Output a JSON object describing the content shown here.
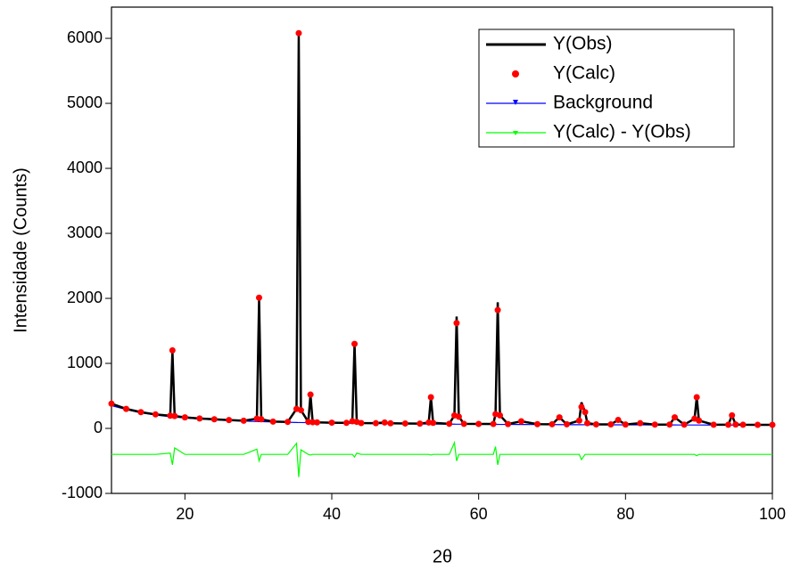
{
  "chart_data": {
    "type": "line",
    "xlabel": "2θ",
    "ylabel": "Intensidade (Counts)",
    "xlim": [
      10,
      100
    ],
    "ylim": [
      -1000,
      6480
    ],
    "xticks": [
      20,
      40,
      60,
      80,
      100
    ],
    "yticks": [
      -1000,
      0,
      1000,
      2000,
      3000,
      4000,
      5000,
      6000
    ],
    "legend": "upper-right",
    "x": [
      10,
      12,
      14,
      16,
      18,
      18.3,
      18.6,
      20,
      22,
      24,
      26,
      28,
      29.8,
      30.1,
      30.4,
      32,
      34,
      35.2,
      35.5,
      35.8,
      36.8,
      37.1,
      37.4,
      38,
      40,
      42,
      42.8,
      43.1,
      43.4,
      44,
      46,
      47.2,
      48,
      50,
      52,
      53.2,
      53.5,
      53.8,
      56,
      56.7,
      57,
      57.3,
      58,
      60,
      62,
      62.3,
      62.6,
      62.9,
      64,
      65.8,
      68,
      70,
      71,
      72,
      73.7,
      74,
      74.5,
      74.8,
      76,
      78,
      79,
      80,
      82,
      84,
      86,
      86.7,
      88,
      89.4,
      89.7,
      90,
      92,
      94,
      94.5,
      95,
      96,
      98,
      100
    ],
    "series": [
      {
        "name": "Y(Obs)",
        "color": "#000000",
        "style": "line",
        "values": [
          380,
          300,
          250,
          215,
          195,
          1190,
          190,
          170,
          152,
          140,
          128,
          118,
          150,
          1980,
          140,
          105,
          100,
          300,
          6050,
          280,
          100,
          520,
          95,
          92,
          88,
          85,
          110,
          1300,
          100,
          82,
          80,
          90,
          78,
          76,
          74,
          90,
          480,
          85,
          71,
          200,
          1720,
          180,
          70,
          69,
          68,
          220,
          1940,
          200,
          67,
          110,
          65,
          64,
          170,
          63,
          120,
          400,
          250,
          80,
          62,
          61,
          130,
          60,
          80,
          59,
          59,
          170,
          58,
          150,
          480,
          120,
          57,
          57,
          200,
          60,
          56,
          55,
          55
        ]
      },
      {
        "name": "Y(Calc)",
        "color": "#ff0000",
        "style": "dots",
        "values": [
          380,
          300,
          250,
          215,
          195,
          1200,
          190,
          170,
          152,
          140,
          128,
          118,
          150,
          2010,
          140,
          105,
          100,
          300,
          6080,
          280,
          100,
          520,
          95,
          92,
          88,
          85,
          110,
          1300,
          100,
          82,
          80,
          90,
          78,
          76,
          74,
          90,
          480,
          85,
          71,
          200,
          1620,
          180,
          70,
          69,
          68,
          220,
          1820,
          200,
          67,
          110,
          65,
          64,
          170,
          63,
          120,
          330,
          250,
          80,
          62,
          61,
          130,
          60,
          80,
          59,
          59,
          170,
          58,
          150,
          480,
          120,
          57,
          57,
          200,
          60,
          56,
          55,
          55
        ]
      },
      {
        "name": "Background",
        "color": "#0000ff",
        "style": "line",
        "values": [
          350,
          290,
          240,
          205,
          180,
          177,
          174,
          160,
          145,
          132,
          122,
          113,
          106,
          105,
          104,
          99,
          94,
          91,
          90,
          90,
          88,
          87,
          87,
          86,
          82,
          79,
          78,
          78,
          77,
          76,
          74,
          73,
          72,
          70,
          68,
          67,
          67,
          67,
          65,
          65,
          64,
          64,
          64,
          63,
          62,
          62,
          62,
          61,
          61,
          60,
          59,
          58,
          58,
          57,
          57,
          57,
          56,
          56,
          56,
          55,
          55,
          54,
          54,
          53,
          53,
          53,
          52,
          52,
          52,
          52,
          51,
          51,
          51,
          50,
          50,
          50,
          50
        ]
      },
      {
        "name": "Y(Calc) - Y(Obs)",
        "color": "#00ff00",
        "style": "line",
        "values": [
          -400,
          -400,
          -400,
          -400,
          -380,
          -560,
          -300,
          -400,
          -400,
          -400,
          -400,
          -400,
          -320,
          -500,
          -400,
          -400,
          -400,
          -230,
          -750,
          -330,
          -400,
          -410,
          -400,
          -400,
          -400,
          -400,
          -400,
          -440,
          -380,
          -400,
          -400,
          -400,
          -400,
          -400,
          -400,
          -400,
          -410,
          -400,
          -400,
          -220,
          -500,
          -400,
          -400,
          -400,
          -400,
          -280,
          -560,
          -400,
          -400,
          -400,
          -400,
          -400,
          -400,
          -400,
          -400,
          -480,
          -400,
          -400,
          -400,
          -400,
          -400,
          -400,
          -400,
          -400,
          -400,
          -400,
          -400,
          -400,
          -420,
          -400,
          -400,
          -400,
          -400,
          -400,
          -400,
          -400,
          -400
        ]
      }
    ]
  }
}
